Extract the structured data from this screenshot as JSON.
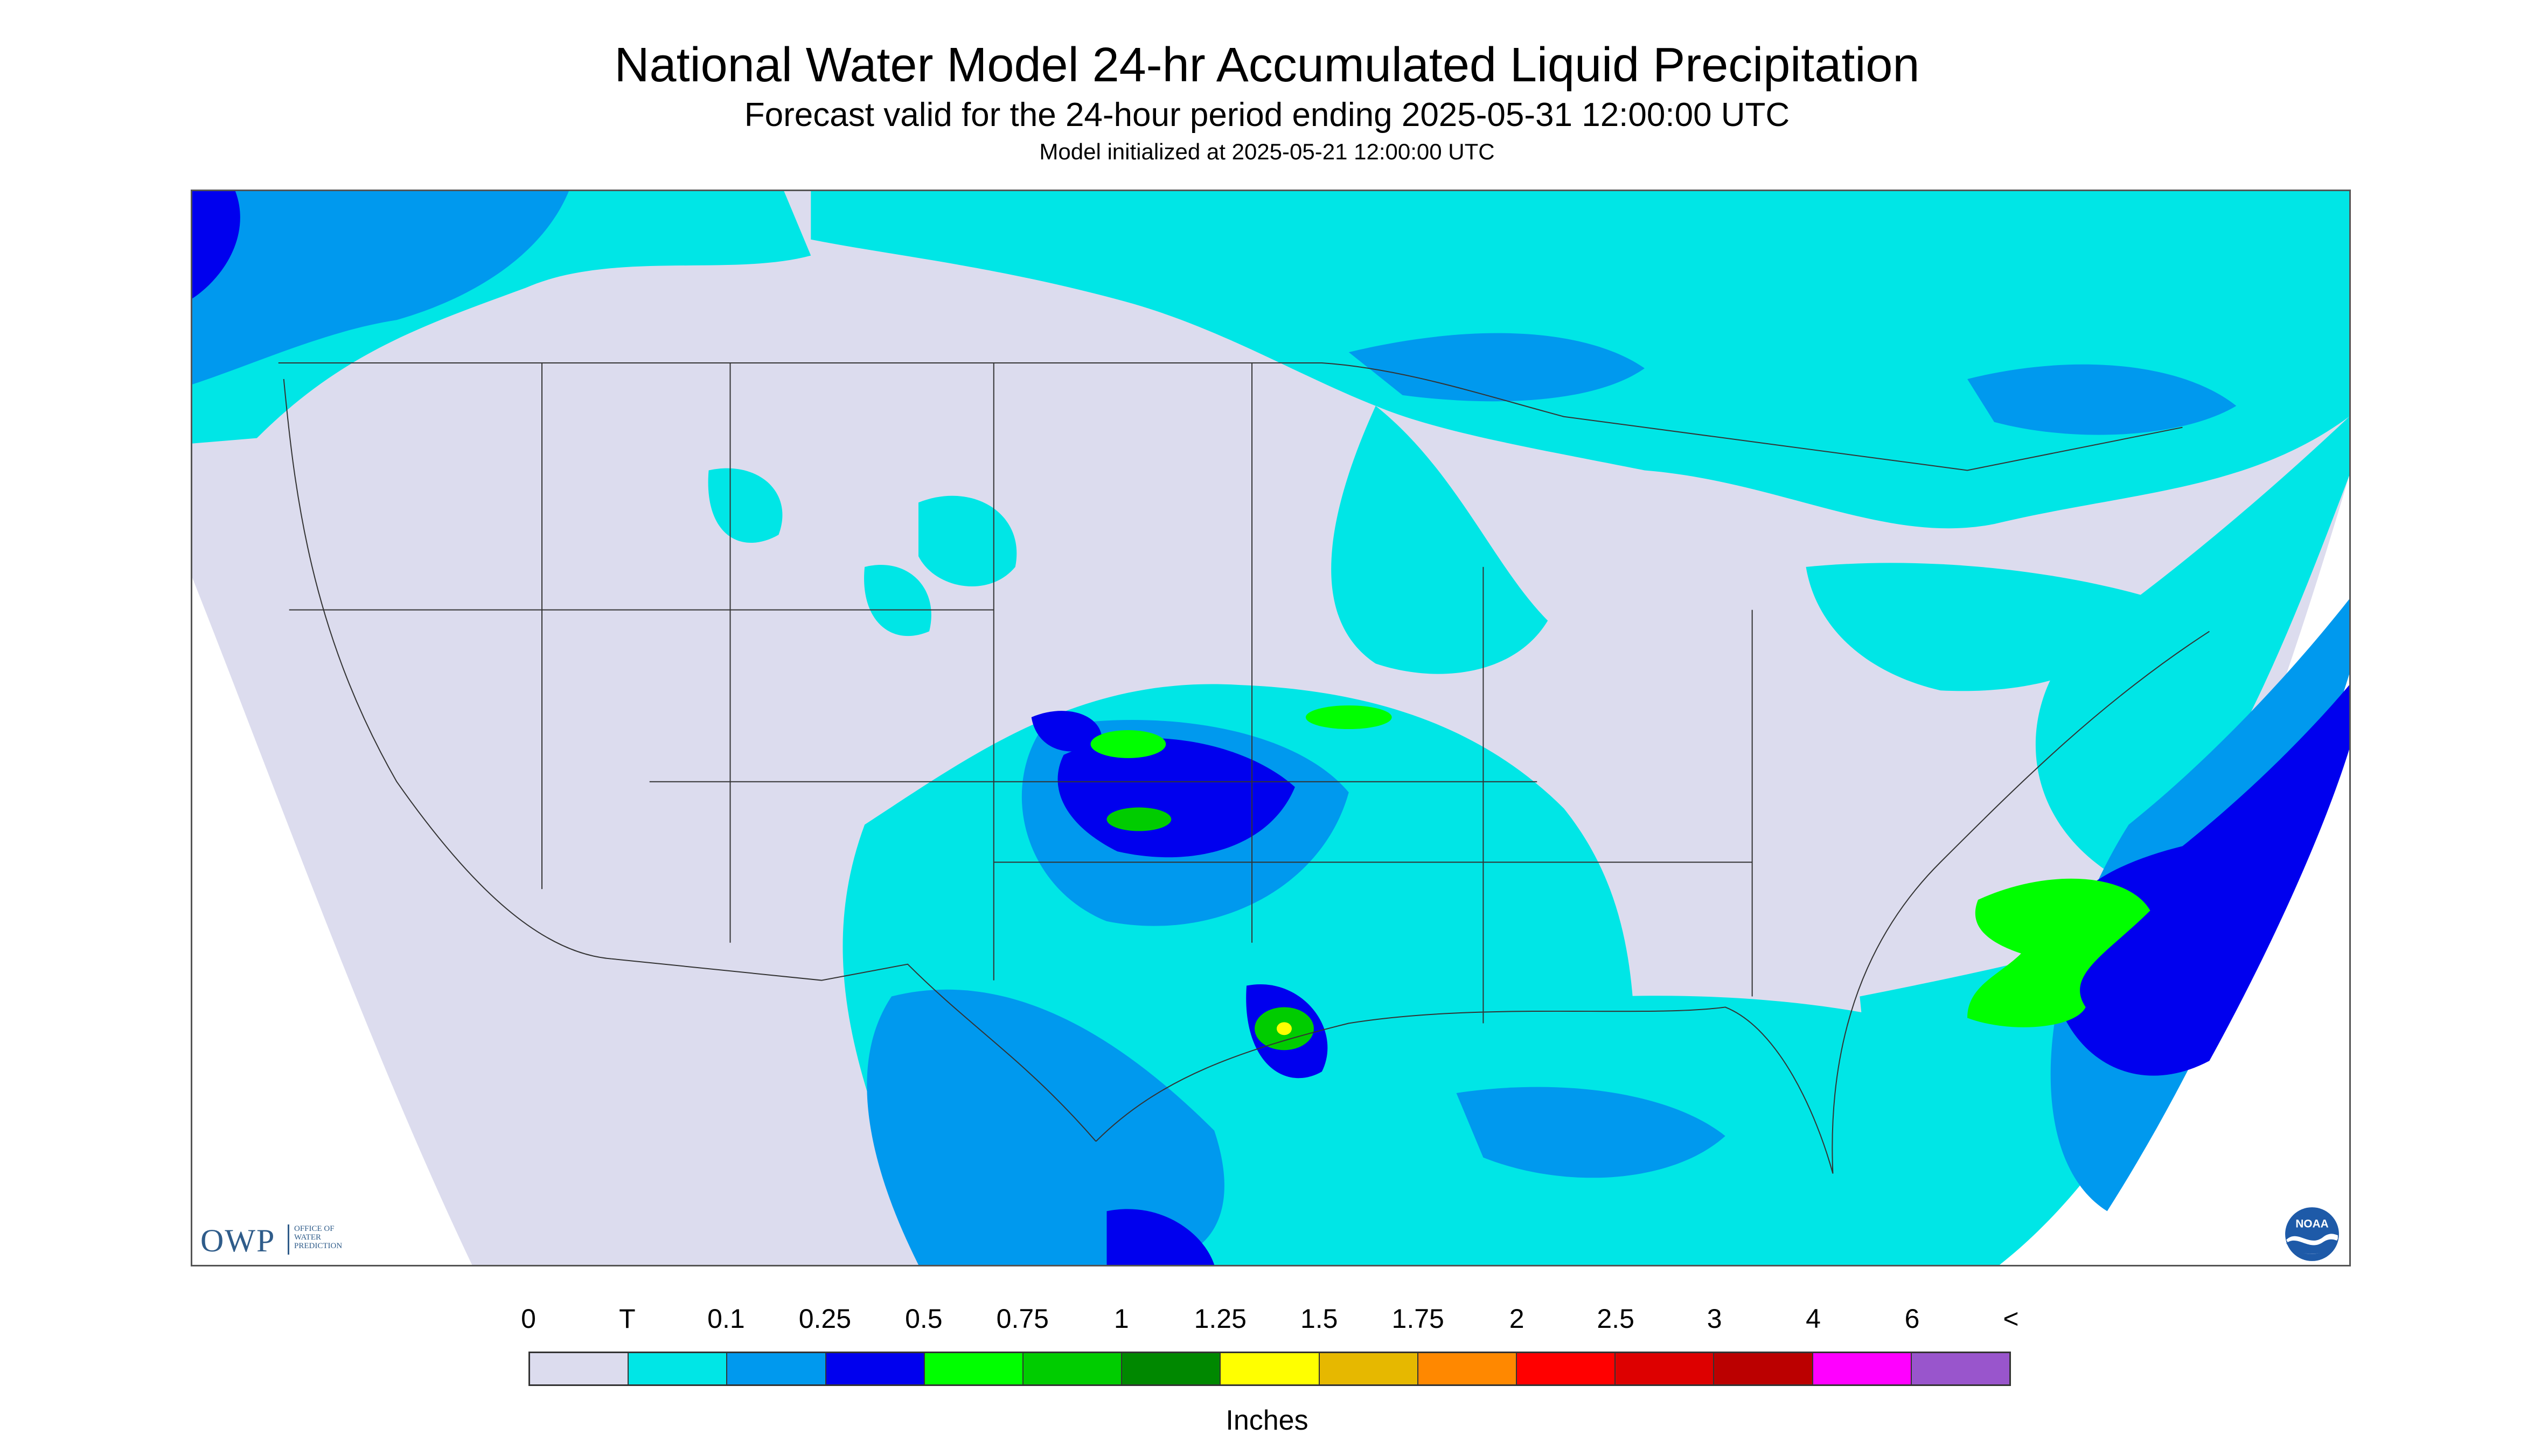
{
  "header": {
    "title": "National Water Model 24-hr Accumulated Liquid Precipitation",
    "subtitle": "Forecast valid for the 24-hour period ending 2025-05-31 12:00:00 UTC",
    "init_line": "Model initialized at 2025-05-21 12:00:00 UTC"
  },
  "map": {
    "background_color": "#dcdcee",
    "region": "CONUS"
  },
  "logos": {
    "owp_letters": "OWP",
    "owp_line1": "OFFICE OF",
    "owp_line2": "WATER",
    "owp_line3": "PREDICTION",
    "noaa_text": "NOAA"
  },
  "legend": {
    "tick_labels": [
      "0",
      "T",
      "0.1",
      "0.25",
      "0.5",
      "0.75",
      "1",
      "1.25",
      "1.5",
      "1.75",
      "2",
      "2.5",
      "3",
      "4",
      "6",
      "<"
    ],
    "colors": [
      "#dcdcee",
      "#00e6e6",
      "#0099ee",
      "#0000ee",
      "#00ff00",
      "#00cc00",
      "#008800",
      "#ffff00",
      "#e6b800",
      "#ff8800",
      "#ff0000",
      "#dd0000",
      "#bb0000",
      "#ff00ff",
      "#9955cc"
    ],
    "units": "Inches"
  }
}
